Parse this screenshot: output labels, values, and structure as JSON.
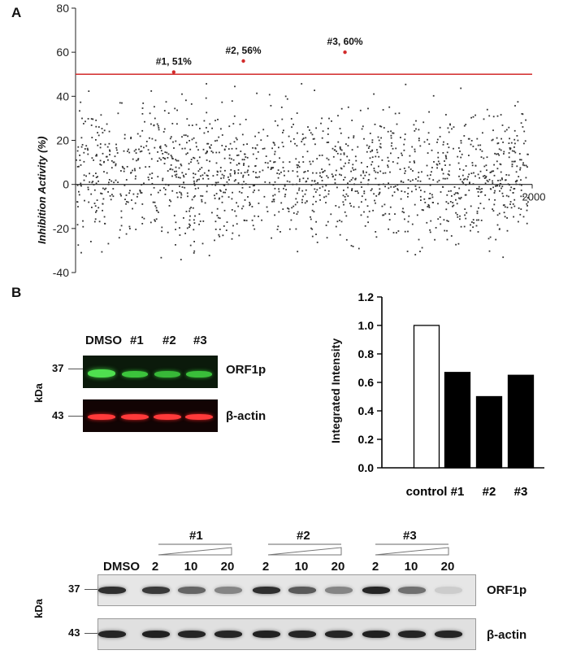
{
  "panel_a": {
    "letter": "A",
    "chart_data": {
      "type": "scatter",
      "ylabel": "Inhibition Activity (%)",
      "ylim": [
        -40,
        80
      ],
      "yticks": [
        "80",
        "60",
        "40",
        "20",
        "0",
        "-20",
        "-40"
      ],
      "xlim": [
        0,
        2000
      ],
      "x_tick_label": "2000",
      "threshold": 50,
      "threshold_color": "#d22b2b",
      "n_points": 2000,
      "value_range": [
        -36,
        46
      ],
      "hits": [
        {
          "label": "#1, 51%",
          "x": 430,
          "y": 51
        },
        {
          "label": "#2, 56%",
          "x": 735,
          "y": 56
        },
        {
          "label": "#3, 60%",
          "x": 1180,
          "y": 60
        }
      ]
    }
  },
  "panel_b": {
    "letter": "B",
    "western_top": {
      "lane_labels": [
        "DMSO",
        "#1",
        "#2",
        "#3"
      ],
      "unit_label": "kDa",
      "markers": [
        "37",
        "43"
      ],
      "band_labels": [
        "ORF1p",
        "β-actin"
      ],
      "colors": {
        "green_band": "#3fcf3f",
        "red_band": "#ff3030"
      }
    },
    "chart_data": {
      "type": "bar",
      "categories": [
        "control",
        "#1",
        "#2",
        "#3"
      ],
      "values": [
        1.0,
        0.67,
        0.5,
        0.65
      ],
      "ylabel": "Integrated Intensity",
      "ylim": [
        0,
        1.2
      ],
      "yticks": [
        "1.2",
        "1.0",
        "0.8",
        "0.6",
        "0.4",
        "0.2",
        "0.0"
      ],
      "colors": [
        "#ffffff",
        "#000000",
        "#000000",
        "#000000"
      ]
    },
    "western_bottom": {
      "group_labels": [
        "#1",
        "#2",
        "#3"
      ],
      "dmso_label": "DMSO",
      "doses": [
        "2",
        "10",
        "20"
      ],
      "unit_label": "kDa",
      "markers": [
        "37",
        "43"
      ],
      "band_labels": [
        "ORF1p",
        "β-actin"
      ],
      "orf1p_intensity": [
        0.85,
        0.8,
        0.6,
        0.45,
        0.85,
        0.65,
        0.45,
        0.9,
        0.55,
        0.12
      ],
      "actin_intensity": [
        0.9,
        0.92,
        0.9,
        0.9,
        0.92,
        0.9,
        0.9,
        0.92,
        0.9,
        0.9
      ]
    }
  }
}
